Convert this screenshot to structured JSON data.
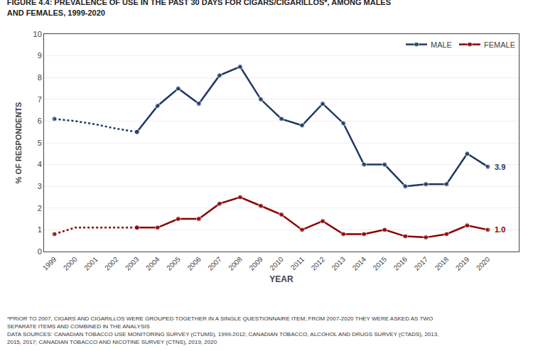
{
  "chart_data": {
    "type": "line",
    "title": [
      "FIGURE 4.4: PREVALENCE OF USE IN THE PAST 30 DAYS FOR CIGARS/CIGARILLOS*, AMONG MALES",
      "AND FEMALES, 1999-2020"
    ],
    "notes": [
      "*PRIOR TO 2007, CIGARS AND CIGARILLOS WERE GROUPED TOGETHER IN A SINGLE QUESTIONNAIRE ITEM; FROM 2007-2020 THEY WERE ASKED AS TWO",
      "SEPARATE ITEMS AND COMBINED IN THE ANALYSIS",
      "DATA SOURCES: CANADIAN TOBACCO USE MONITORING SURVEY (CTUMS), 1999-2012; CANADIAN TOBACCO, ALCOHOL AND DRUGS SURVEY (CTADS), 2013,",
      "2015, 2017; CANADIAN TOBACCO AND NICOTINE SURVEY (CTNS), 2019, 2020"
    ],
    "x_label": "YEAR",
    "y_label": "% OF RESPONDENTS",
    "xlim": [
      1998.5,
      2021.5
    ],
    "xticks": [
      1999,
      2000,
      2001,
      2002,
      2003,
      2004,
      2005,
      2006,
      2007,
      2008,
      2009,
      2010,
      2011,
      2012,
      2013,
      2014,
      2015,
      2016,
      2017,
      2018,
      2019,
      2020
    ],
    "ylim": [
      0,
      10
    ],
    "yticks": [
      0,
      1,
      2,
      3,
      4,
      5,
      6,
      7,
      8,
      9,
      10
    ],
    "grid": true,
    "legend": "upper right",
    "marker": "circle",
    "series": [
      {
        "color": "#1F3864",
        "line_style": "dotted",
        "x": [
          1999,
          2000,
          2001,
          2002,
          2003
        ],
        "values": [
          6.1,
          6.0,
          5.85,
          5.65,
          5.5
        ]
      },
      {
        "color": "#8B0000",
        "line_style": "dotted",
        "x": [
          1999,
          2000,
          2001,
          2002,
          2003
        ],
        "values": [
          0.8,
          1.1,
          1.1,
          1.1,
          1.1
        ]
      },
      {
        "name": "MALE",
        "color": "#1F3864",
        "line_style": "solid",
        "x": [
          2003,
          2004,
          2005,
          2006,
          2007,
          2008,
          2009,
          2010,
          2011,
          2012,
          2013,
          2014,
          2015,
          2016,
          2017,
          2018,
          2019,
          2020
        ],
        "values": [
          5.5,
          6.7,
          7.5,
          6.8,
          8.1,
          8.5,
          7.0,
          6.1,
          5.8,
          6.8,
          5.9,
          4.0,
          4.0,
          3.0,
          3.1,
          3.1,
          4.5,
          3.9
        ]
      },
      {
        "name": "FEMALE",
        "color": "#8B0000",
        "line_style": "solid",
        "x": [
          2003,
          2004,
          2005,
          2006,
          2007,
          2008,
          2009,
          2010,
          2011,
          2012,
          2013,
          2014,
          2015,
          2016,
          2017,
          2018,
          2019,
          2020
        ],
        "values": [
          1.1,
          1.1,
          1.5,
          1.5,
          2.2,
          2.5,
          2.1,
          1.7,
          1.0,
          1.4,
          0.8,
          0.8,
          1.0,
          0.7,
          0.65,
          0.8,
          1.2,
          1.0
        ]
      }
    ],
    "annotations": [
      {
        "x": 2020,
        "y": 3.9,
        "text": "3.9",
        "color": "#1F3864"
      },
      {
        "x": 2020,
        "y": 1.0,
        "text": "1.0",
        "color": "#8B0000"
      }
    ]
  }
}
